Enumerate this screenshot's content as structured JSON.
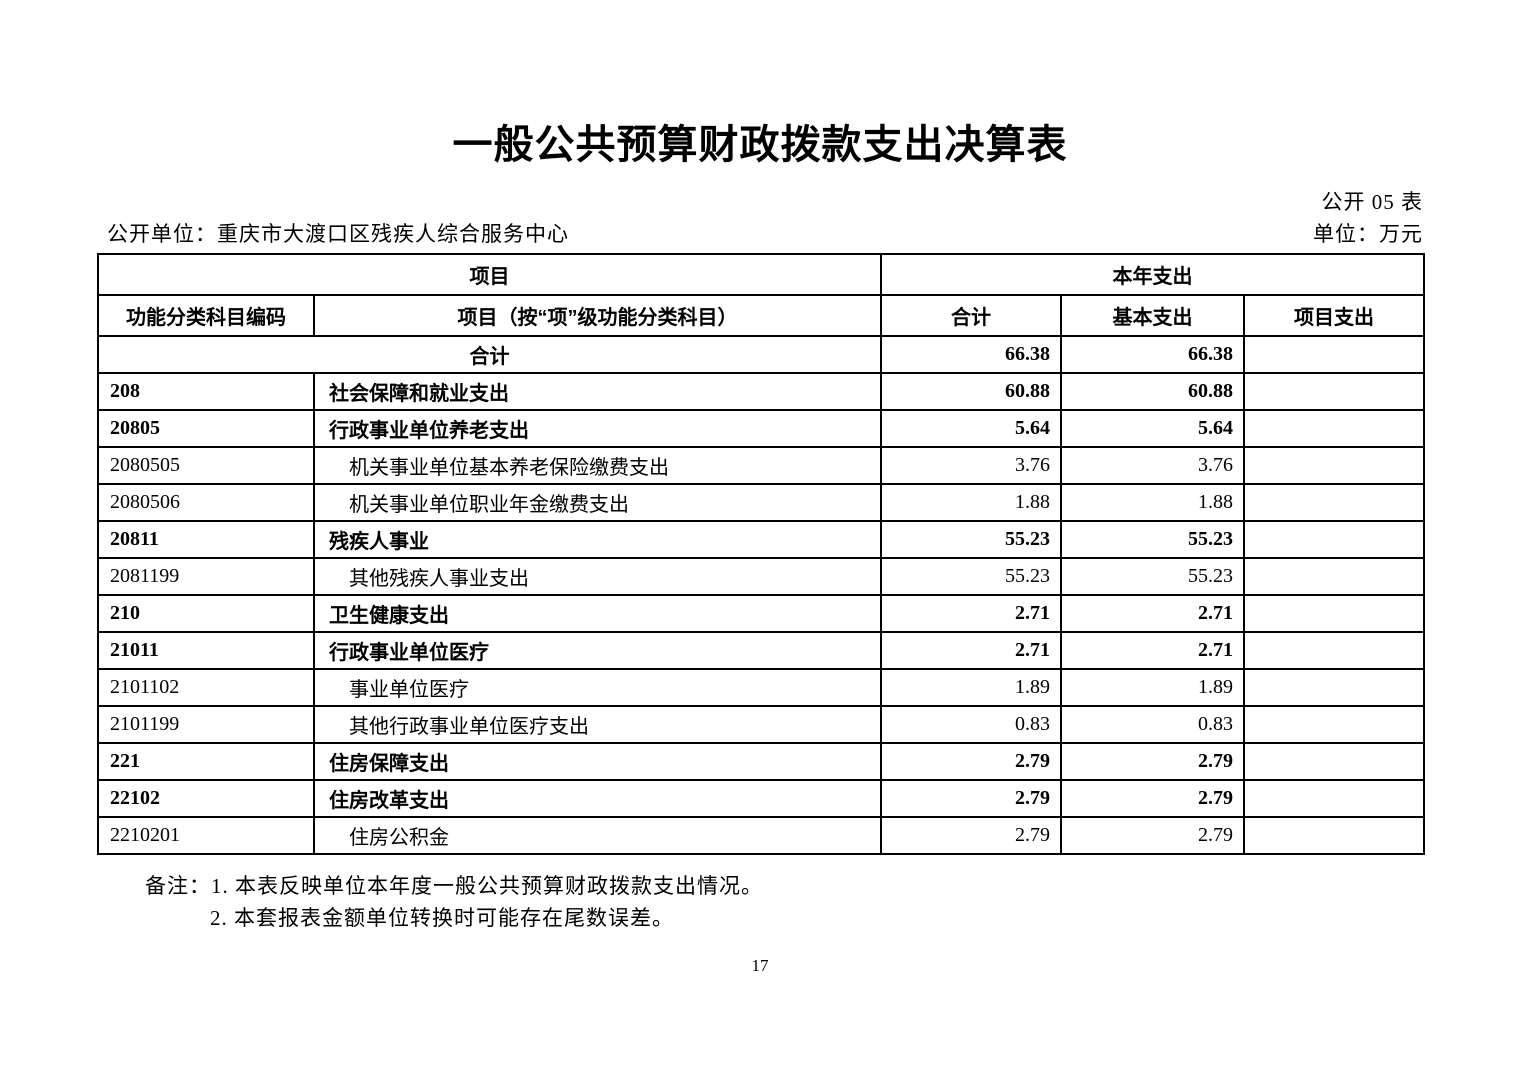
{
  "page": {
    "title": "一般公共预算财政拨款支出决算表",
    "table_code": "公开 05 表",
    "publish_unit": "公开单位：重庆市大渡口区残疾人综合服务中心",
    "money_unit": "单位：万元",
    "page_number": "17"
  },
  "table": {
    "header": {
      "group_item": "项目",
      "group_year": "本年支出",
      "col_code": "功能分类科目编码",
      "col_item": "项目（按“项”级功能分类科目）",
      "col_total": "合计",
      "col_basic": "基本支出",
      "col_project": "项目支出"
    },
    "rows": [
      {
        "code": "",
        "item": "合计",
        "total": "66.38",
        "basic": "66.38",
        "project": "",
        "style": "total"
      },
      {
        "code": "208",
        "item": "社会保障和就业支出",
        "total": "60.88",
        "basic": "60.88",
        "project": "",
        "style": "bold"
      },
      {
        "code": "20805",
        "item": "行政事业单位养老支出",
        "total": "5.64",
        "basic": "5.64",
        "project": "",
        "style": "bold"
      },
      {
        "code": "2080505",
        "item": "机关事业单位基本养老保险缴费支出",
        "total": "3.76",
        "basic": "3.76",
        "project": "",
        "style": "detail"
      },
      {
        "code": "2080506",
        "item": "机关事业单位职业年金缴费支出",
        "total": "1.88",
        "basic": "1.88",
        "project": "",
        "style": "detail"
      },
      {
        "code": "20811",
        "item": "残疾人事业",
        "total": "55.23",
        "basic": "55.23",
        "project": "",
        "style": "bold"
      },
      {
        "code": "2081199",
        "item": "其他残疾人事业支出",
        "total": "55.23",
        "basic": "55.23",
        "project": "",
        "style": "detail"
      },
      {
        "code": "210",
        "item": "卫生健康支出",
        "total": "2.71",
        "basic": "2.71",
        "project": "",
        "style": "bold"
      },
      {
        "code": "21011",
        "item": "行政事业单位医疗",
        "total": "2.71",
        "basic": "2.71",
        "project": "",
        "style": "bold"
      },
      {
        "code": "2101102",
        "item": "事业单位医疗",
        "total": "1.89",
        "basic": "1.89",
        "project": "",
        "style": "detail"
      },
      {
        "code": "2101199",
        "item": "其他行政事业单位医疗支出",
        "total": "0.83",
        "basic": "0.83",
        "project": "",
        "style": "detail"
      },
      {
        "code": "221",
        "item": "住房保障支出",
        "total": "2.79",
        "basic": "2.79",
        "project": "",
        "style": "bold"
      },
      {
        "code": "22102",
        "item": "住房改革支出",
        "total": "2.79",
        "basic": "2.79",
        "project": "",
        "style": "bold"
      },
      {
        "code": "2210201",
        "item": "住房公积金",
        "total": "2.79",
        "basic": "2.79",
        "project": "",
        "style": "detail"
      }
    ]
  },
  "notes": {
    "label": "备注：",
    "line1": "1. 本表反映单位本年度一般公共预算财政拨款支出情况。",
    "line2": "2. 本套报表金额单位转换时可能存在尾数误差。"
  }
}
